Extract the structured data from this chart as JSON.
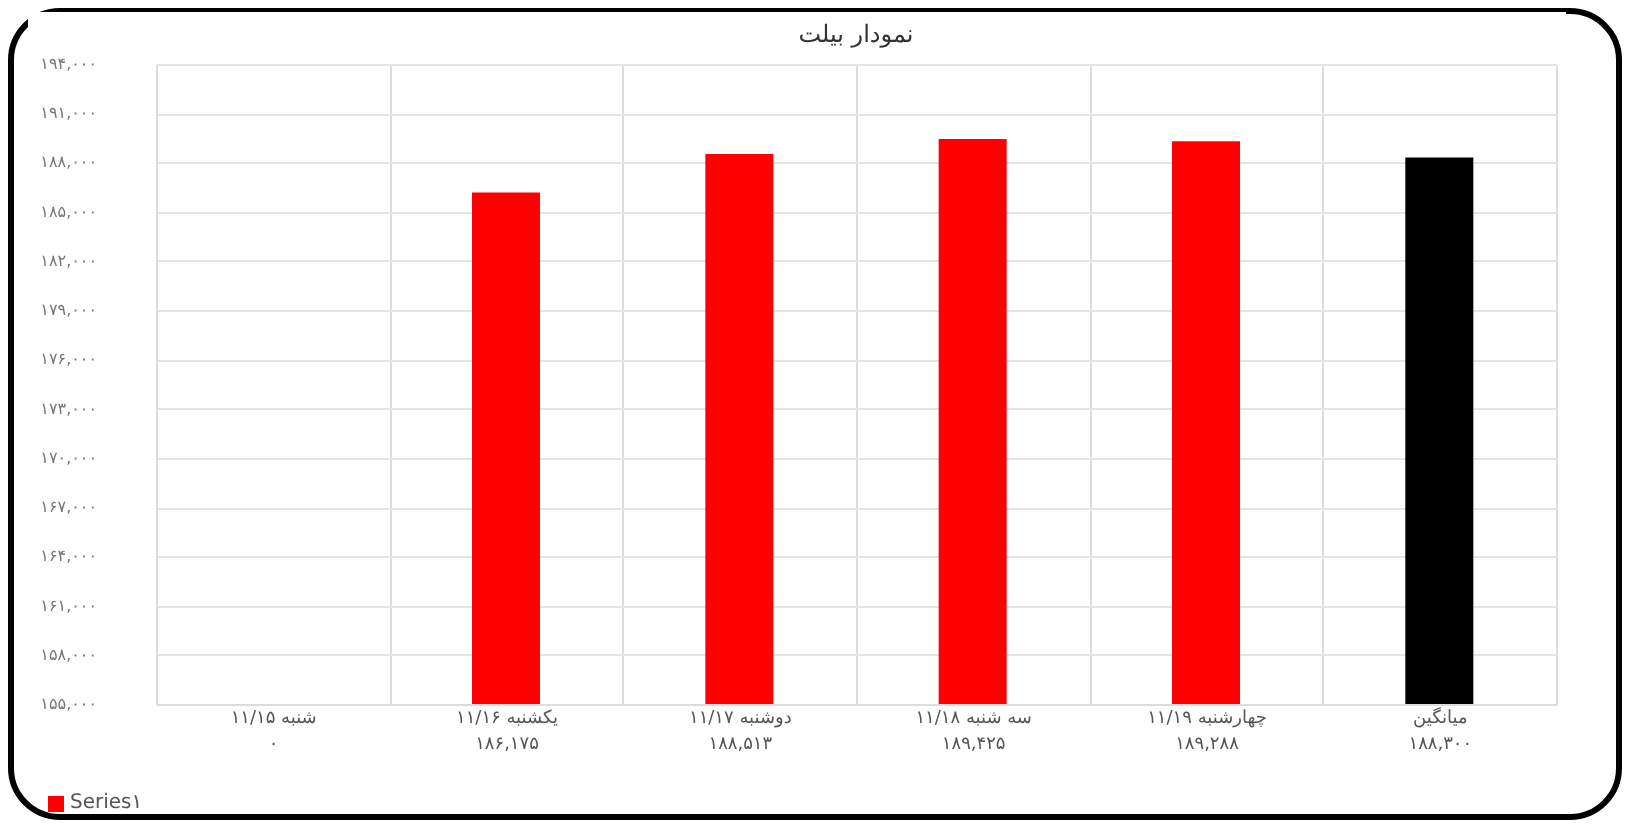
{
  "chart_data": {
    "type": "bar",
    "title": "نمودار بیلت",
    "categories": [
      "شنبه ۱۱/۱۵",
      "یکشنبه ۱۱/۱۶",
      "دوشنبه ۱۱/۱۷",
      "سه شنبه ۱۱/۱۸",
      "چهارشنبه ۱۱/۱۹",
      "میانگین"
    ],
    "series": [
      {
        "name": "Series۱",
        "color": "#ff0000",
        "colors": [
          "#ff0000",
          "#ff0000",
          "#ff0000",
          "#ff0000",
          "#ff0000",
          "#000000"
        ],
        "values": [
          null,
          186175,
          188513,
          189425,
          189288,
          188300
        ],
        "value_labels": [
          "۰",
          "۱۸۶,۱۷۵",
          "۱۸۸,۵۱۳",
          "۱۸۹,۴۲۵",
          "۱۸۹,۲۸۸",
          "۱۸۸,۳۰۰"
        ]
      }
    ],
    "ylim": [
      155000,
      194000
    ],
    "yticks": [
      {
        "value": 155000,
        "label": "۱۵۵,۰۰۰"
      },
      {
        "value": 158000,
        "label": "۱۵۸,۰۰۰"
      },
      {
        "value": 161000,
        "label": "۱۶۱,۰۰۰"
      },
      {
        "value": 164000,
        "label": "۱۶۴,۰۰۰"
      },
      {
        "value": 167000,
        "label": "۱۶۷,۰۰۰"
      },
      {
        "value": 170000,
        "label": "۱۷۰,۰۰۰"
      },
      {
        "value": 173000,
        "label": "۱۷۳,۰۰۰"
      },
      {
        "value": 176000,
        "label": "۱۷۶,۰۰۰"
      },
      {
        "value": 179000,
        "label": "۱۷۹,۰۰۰"
      },
      {
        "value": 182000,
        "label": "۱۸۲,۰۰۰"
      },
      {
        "value": 185000,
        "label": "۱۸۵,۰۰۰"
      },
      {
        "value": 188000,
        "label": "۱۸۸,۰۰۰"
      },
      {
        "value": 191000,
        "label": "۱۹۱,۰۰۰"
      },
      {
        "value": 194000,
        "label": "۱۹۴,۰۰۰"
      }
    ],
    "grid": "y",
    "legend": "bottom left"
  }
}
